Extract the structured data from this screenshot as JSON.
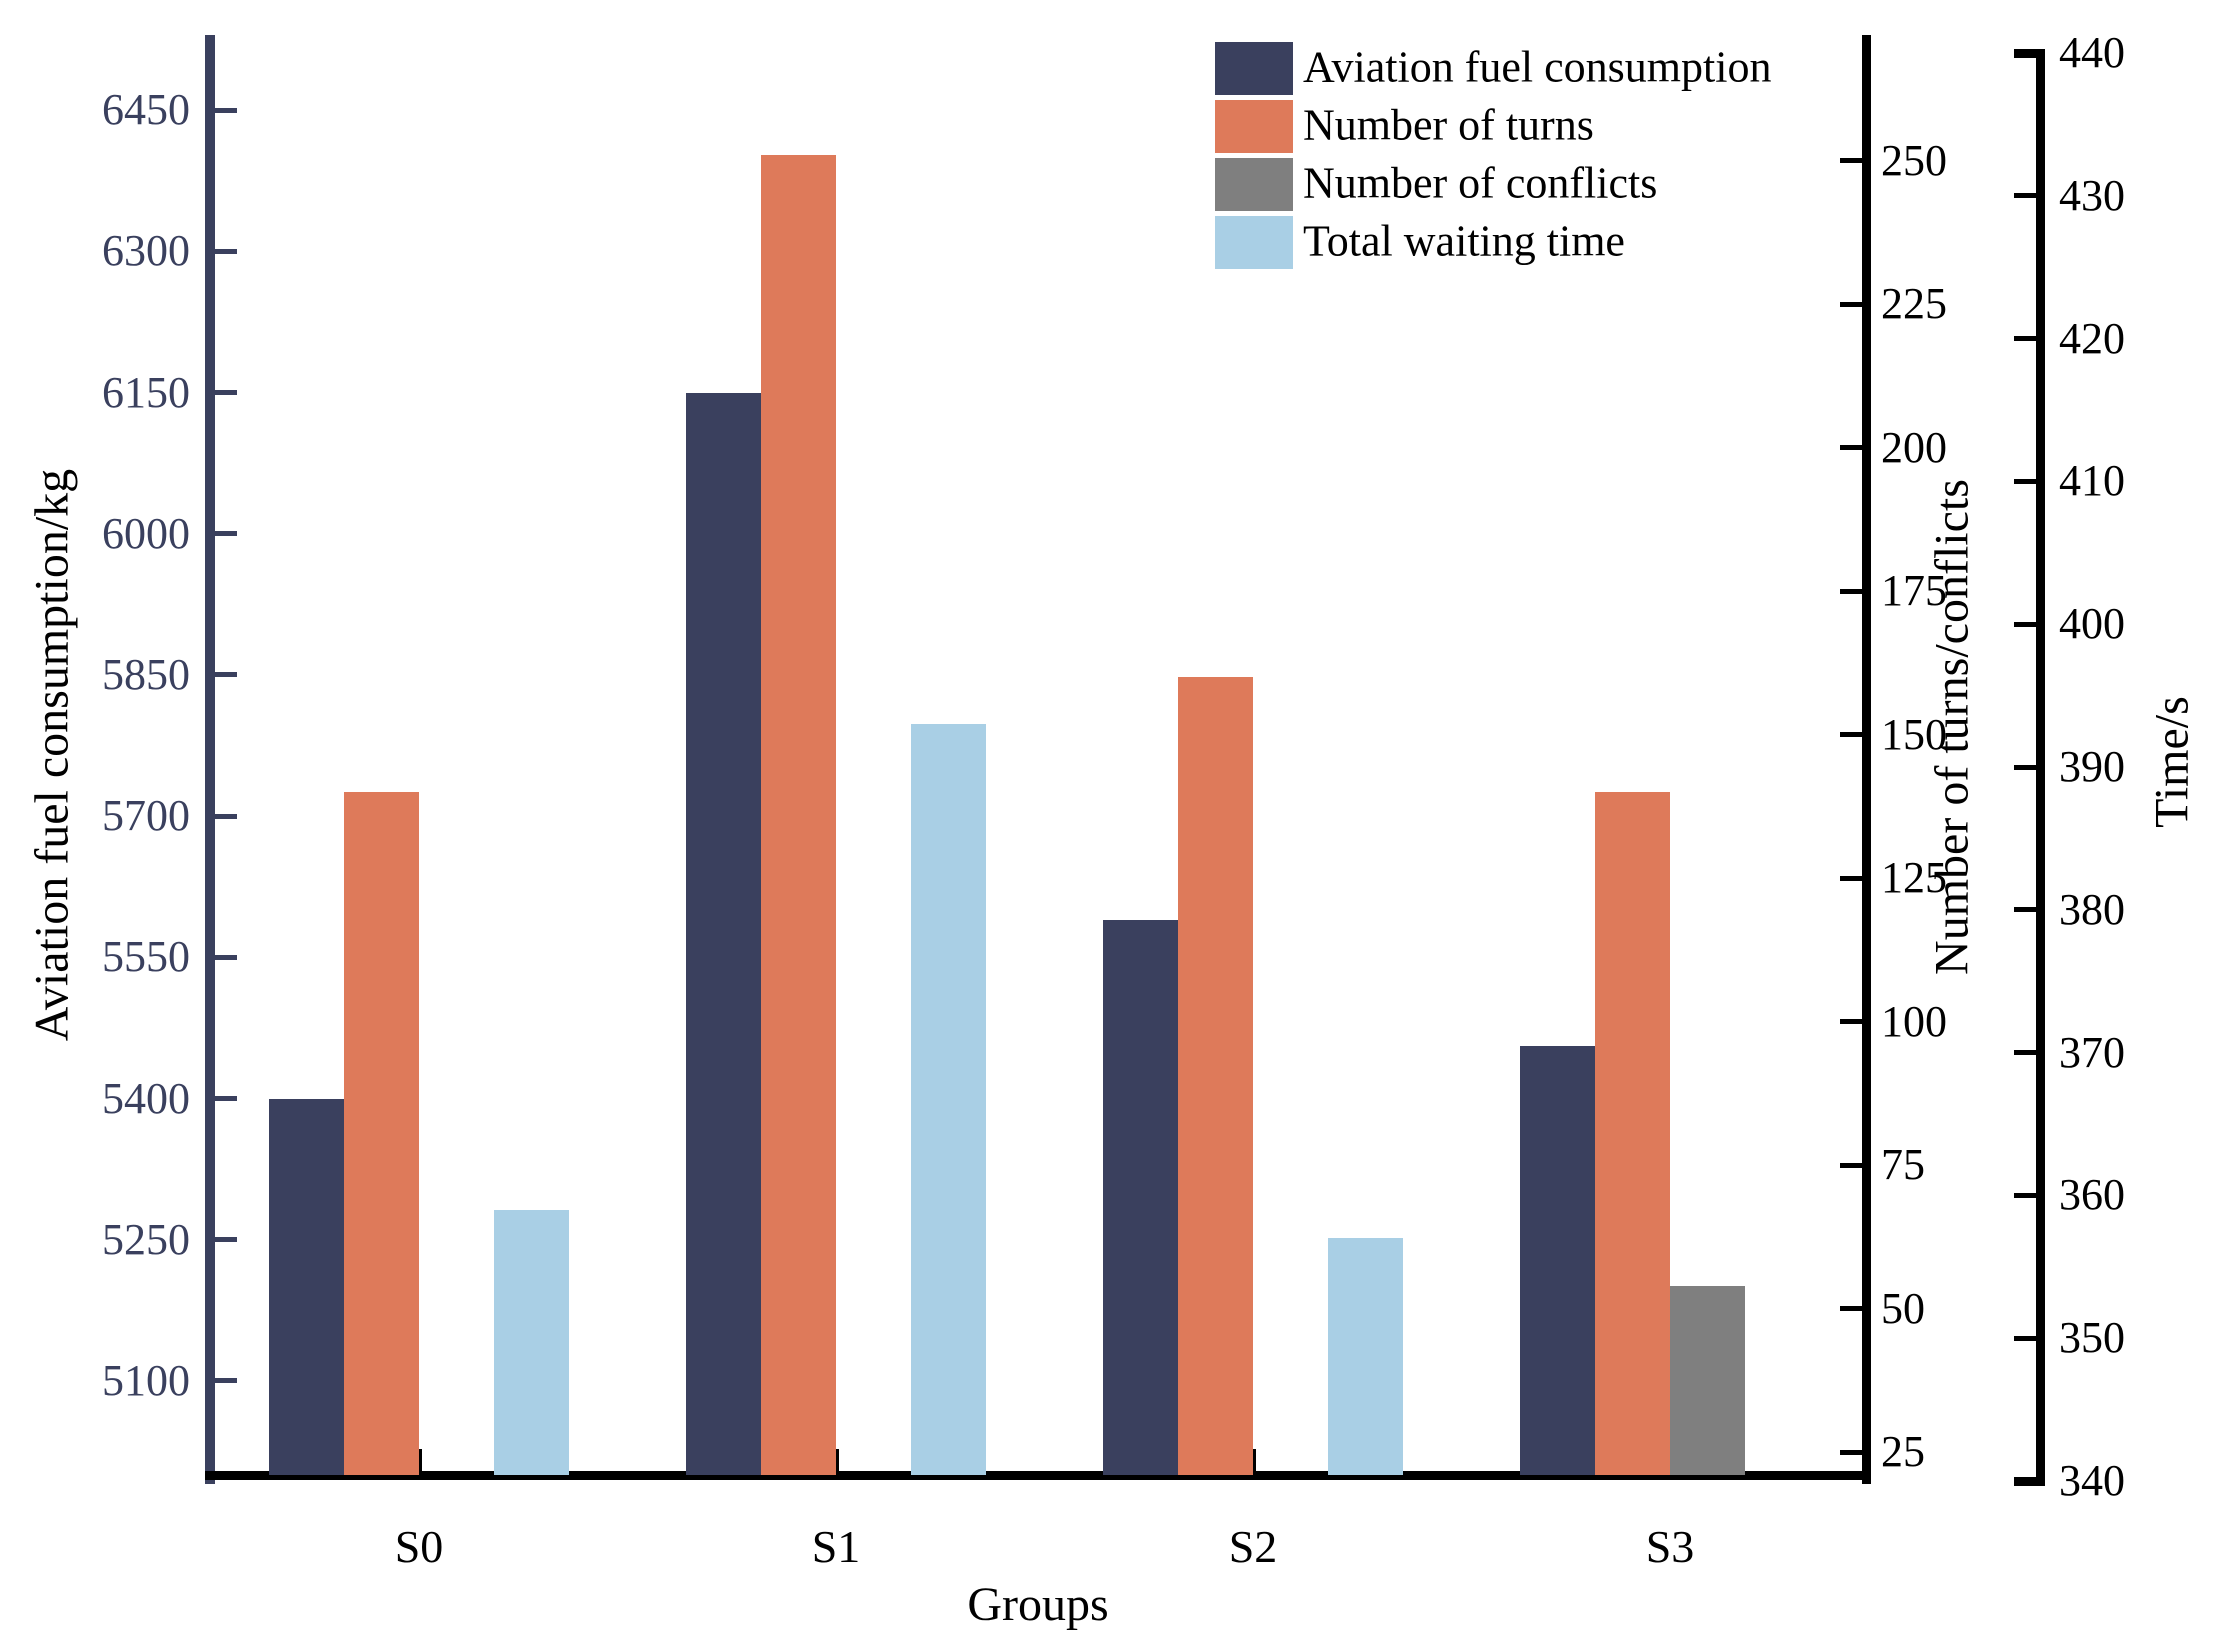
{
  "chart_data": {
    "type": "bar",
    "title": "",
    "categories": [
      "S0",
      "S1",
      "S2",
      "S3"
    ],
    "series": [
      {
        "name": "Aviation fuel consumption",
        "axis": "fuel",
        "color": "#3A405E",
        "values": [
          5400,
          6150,
          5590,
          5456
        ]
      },
      {
        "name": "Number of turns",
        "axis": "turns",
        "color": "#DE7A5A",
        "values": [
          140,
          251,
          160,
          140
        ]
      },
      {
        "name": "Number of conflicts",
        "axis": "turns",
        "color": "#7F7F7F",
        "values": [
          0,
          0,
          0,
          54
        ]
      },
      {
        "name": "Total waiting time",
        "axis": "time",
        "color": "#A9CFE5",
        "values": [
          359,
          393,
          357,
          340
        ]
      }
    ],
    "xlabel": "Groups",
    "axes": {
      "fuel": {
        "label": "Aviation fuel consumption/kg",
        "color": "#3A405E",
        "min": 5000,
        "max": 6530,
        "ticks": [
          5100,
          5250,
          5400,
          5550,
          5700,
          5850,
          6000,
          6150,
          6300,
          6450
        ]
      },
      "turns": {
        "label": "Number of turns/conflicts",
        "color": "#000000",
        "min": 21,
        "max": 272,
        "ticks": [
          25,
          50,
          75,
          100,
          125,
          150,
          175,
          200,
          225,
          250
        ]
      },
      "time": {
        "label": "Time/s",
        "color": "#000000",
        "min": 340,
        "max": 440,
        "ticks": [
          340,
          350,
          360,
          370,
          380,
          390,
          400,
          410,
          420,
          430,
          440
        ]
      }
    },
    "legend": [
      {
        "label": "Aviation fuel consumption",
        "color": "#3A405E"
      },
      {
        "label": "Number of turns",
        "color": "#DE7A5A"
      },
      {
        "label": "Number of conflicts",
        "color": "#7F7F7F"
      },
      {
        "label": "Total waiting time",
        "color": "#A9CFE5"
      }
    ],
    "legend_position": "top-center",
    "grid": false
  }
}
